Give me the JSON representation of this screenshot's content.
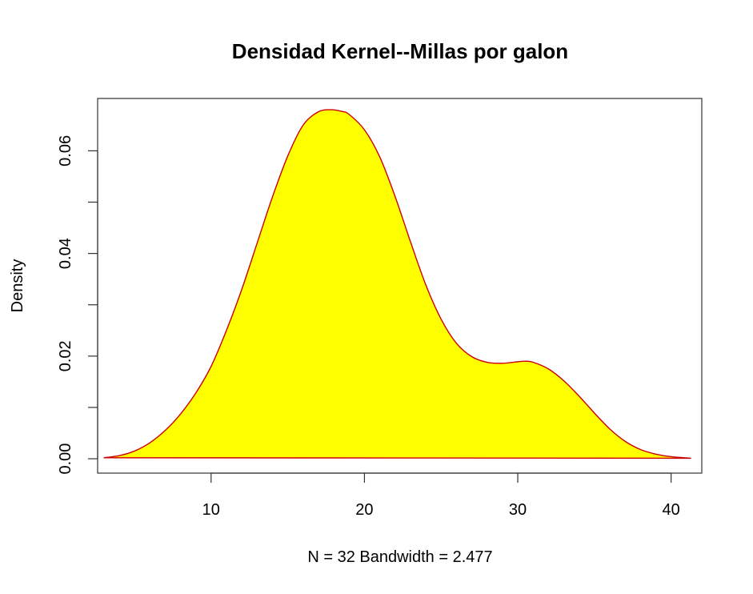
{
  "chart_data": {
    "type": "area",
    "title": "Densidad Kernel--Millas por galon",
    "xlabel": "N = 32   Bandwidth = 2.477",
    "ylabel": "Density",
    "xlim": [
      2.6,
      42.0
    ],
    "ylim": [
      -0.0028,
      0.0702
    ],
    "x_ticks": [
      10,
      20,
      30,
      40
    ],
    "x_tick_labels": [
      "10",
      "20",
      "30",
      "40"
    ],
    "y_ticks": [
      0.0,
      0.01,
      0.02,
      0.03,
      0.04,
      0.05,
      0.06
    ],
    "y_tick_labels": [
      "0.00",
      "",
      "0.02",
      "",
      "0.04",
      "",
      "0.06"
    ],
    "grid": false,
    "legend": "none",
    "fill_color": "#ffff00",
    "line_color": "#cc0000",
    "series": [
      {
        "x": [
          3.0,
          4.0,
          5.0,
          6.0,
          7.0,
          8.0,
          9.0,
          10.0,
          11.0,
          12.0,
          13.0,
          14.0,
          15.0,
          16.0,
          17.0,
          17.8,
          18.5,
          19.0,
          20.0,
          21.0,
          22.0,
          23.0,
          24.0,
          25.0,
          26.0,
          27.0,
          28.0,
          29.0,
          30.0,
          30.5,
          31.0,
          32.0,
          33.0,
          34.0,
          35.0,
          36.0,
          37.0,
          38.0,
          39.0,
          40.0,
          41.3
        ],
        "y": [
          0.0002,
          0.0006,
          0.0015,
          0.0031,
          0.0055,
          0.0087,
          0.0128,
          0.018,
          0.025,
          0.033,
          0.042,
          0.051,
          0.059,
          0.065,
          0.0676,
          0.068,
          0.0677,
          0.0671,
          0.0641,
          0.0588,
          0.0511,
          0.0423,
          0.0339,
          0.0272,
          0.0225,
          0.0199,
          0.0188,
          0.0186,
          0.0189,
          0.019,
          0.0188,
          0.0175,
          0.0152,
          0.0122,
          0.0089,
          0.0058,
          0.0034,
          0.0018,
          0.0009,
          0.0004,
          0.0001
        ]
      }
    ]
  }
}
